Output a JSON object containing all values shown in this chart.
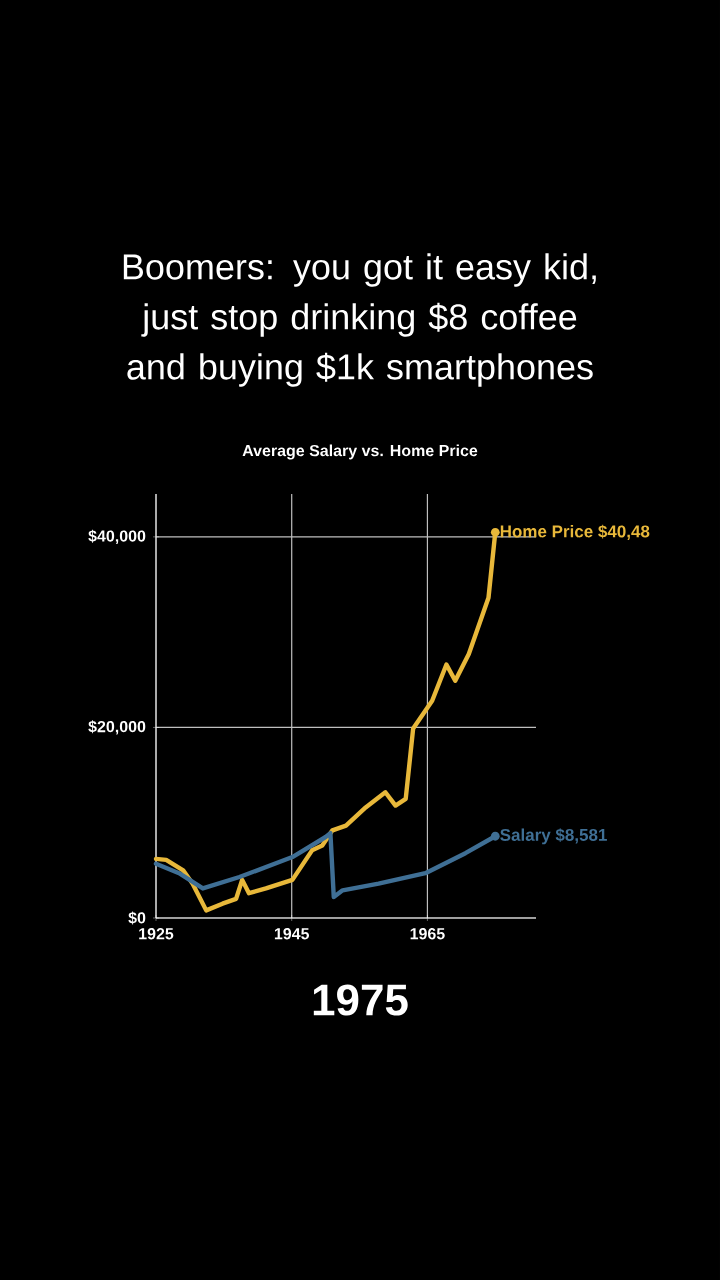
{
  "chart_data": {
    "type": "line",
    "title": "Boomers: you got it easy kid, just stop drinking $8 coffee and buying $1k smartphones",
    "subtitle": "Average Salary vs. Home Price",
    "series": [
      {
        "color": "#e8b83a",
        "x": [
          1925,
          1926.5,
          1929,
          1930.4,
          1932.4,
          1934.8,
          1936.8,
          1937.7,
          1938.7,
          1941.2,
          1945.1,
          1948,
          1949.5,
          1951,
          1953,
          1955.9,
          1958.8,
          1960.3,
          1961.8,
          1962.9,
          1965.7,
          1967.8,
          1969.1,
          1971.1,
          1974,
          1975
        ],
        "values": [
          6200,
          6100,
          5000,
          3600,
          800,
          1500,
          2000,
          4000,
          2600,
          3100,
          4000,
          7100,
          7600,
          9200,
          9700,
          11600,
          13200,
          11800,
          12500,
          19900,
          22800,
          26600,
          24900,
          27700,
          33600,
          40480
        ]
      },
      {
        "color": "#3f6f95",
        "x": [
          1925,
          1928.4,
          1931.9,
          1937.3,
          1945.1,
          1950,
          1950.7,
          1951.2,
          1952.5,
          1957.8,
          1964.7,
          1970.6,
          1975
        ],
        "values": [
          5700,
          4700,
          3100,
          4300,
          6400,
          8500,
          8900,
          2200,
          2900,
          3600,
          4700,
          6800,
          8581
        ]
      }
    ],
    "xlim": [
      1925,
      1981
    ],
    "ylim": [
      0,
      44500
    ],
    "xticks": [
      1925,
      1945,
      1965
    ],
    "yticks": [
      {
        "value": 0,
        "label": "$0"
      },
      {
        "value": 20000,
        "label": "$20,000"
      },
      {
        "value": 40000,
        "label": "$40,000"
      }
    ],
    "grid": true,
    "annotations": [
      "1975",
      {
        "text": "Home Price $40,48",
        "x": 1975,
        "y": 40480
      },
      {
        "text": "Salary  $8,581",
        "x": 1975,
        "y": 8581
      }
    ]
  }
}
